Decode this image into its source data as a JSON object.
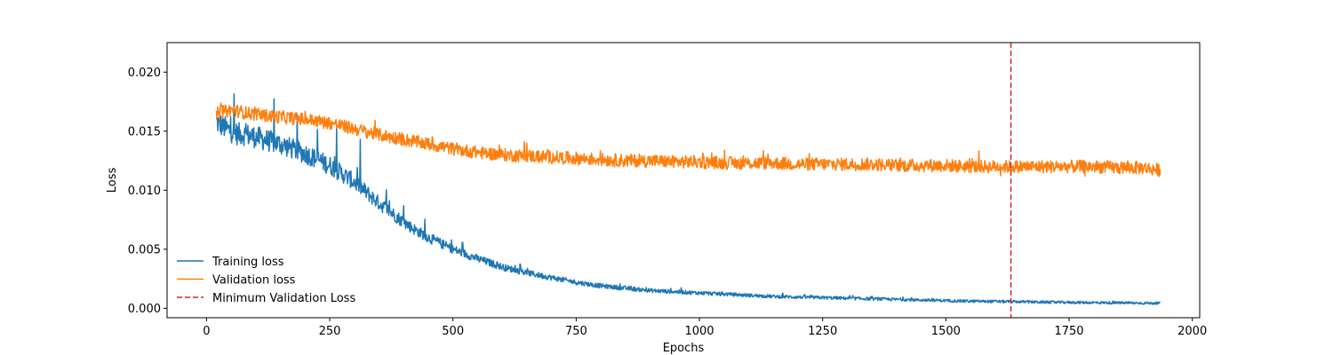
{
  "chart_data": {
    "type": "line",
    "title": "",
    "xlabel": "Epochs",
    "ylabel": "Loss",
    "xlim": [
      -80,
      2015
    ],
    "ylim": [
      -0.0008,
      0.0225
    ],
    "x_ticks": [
      0,
      250,
      500,
      750,
      1000,
      1250,
      1500,
      1750,
      2000
    ],
    "x_tick_labels": [
      "0",
      "250",
      "500",
      "750",
      "1000",
      "1250",
      "1500",
      "1750",
      "2000"
    ],
    "y_ticks": [
      0.0,
      0.005,
      0.01,
      0.015,
      0.02
    ],
    "y_tick_labels": [
      "0.000",
      "0.005",
      "0.010",
      "0.015",
      "0.020"
    ],
    "grid": false,
    "legend_position": "lower-left",
    "series": [
      {
        "name": "Training loss",
        "color": "#1f77b4",
        "style": "solid",
        "x": [
          20,
          40,
          60,
          80,
          100,
          125,
          150,
          175,
          200,
          225,
          250,
          275,
          300,
          325,
          350,
          375,
          400,
          425,
          450,
          475,
          500,
          550,
          600,
          650,
          700,
          750,
          800,
          850,
          900,
          950,
          1000,
          1050,
          1100,
          1150,
          1200,
          1250,
          1300,
          1350,
          1400,
          1450,
          1500,
          1550,
          1600,
          1650,
          1700,
          1750,
          1800,
          1850,
          1900,
          1935
        ],
        "y": [
          0.0158,
          0.0152,
          0.0148,
          0.0147,
          0.0145,
          0.0142,
          0.0139,
          0.0135,
          0.0131,
          0.0126,
          0.0121,
          0.0114,
          0.0107,
          0.0098,
          0.0089,
          0.0081,
          0.0073,
          0.0066,
          0.006,
          0.0055,
          0.005,
          0.0042,
          0.0035,
          0.003,
          0.0026,
          0.0022,
          0.0019,
          0.0017,
          0.0015,
          0.0014,
          0.0013,
          0.0012,
          0.0011,
          0.001,
          0.00095,
          0.0009,
          0.00085,
          0.0008,
          0.00075,
          0.0007,
          0.00065,
          0.0006,
          0.00058,
          0.00055,
          0.00052,
          0.0005,
          0.00048,
          0.00046,
          0.00044,
          0.00043
        ]
      },
      {
        "name": "Validation loss",
        "color": "#ff7f0e",
        "style": "solid",
        "x": [
          20,
          50,
          100,
          150,
          200,
          250,
          300,
          350,
          400,
          450,
          500,
          550,
          600,
          650,
          700,
          750,
          800,
          850,
          900,
          950,
          1000,
          1050,
          1100,
          1150,
          1200,
          1250,
          1300,
          1350,
          1400,
          1450,
          1500,
          1550,
          1600,
          1650,
          1700,
          1750,
          1800,
          1850,
          1900,
          1935
        ],
        "y": [
          0.0165,
          0.0168,
          0.0164,
          0.0162,
          0.016,
          0.0157,
          0.0152,
          0.0147,
          0.0143,
          0.0139,
          0.0135,
          0.0132,
          0.013,
          0.0129,
          0.0128,
          0.0127,
          0.0126,
          0.0125,
          0.0125,
          0.0124,
          0.0124,
          0.0123,
          0.0123,
          0.0123,
          0.0122,
          0.0122,
          0.0122,
          0.0122,
          0.0121,
          0.0121,
          0.0121,
          0.012,
          0.012,
          0.012,
          0.012,
          0.012,
          0.012,
          0.0119,
          0.0119,
          0.0117
        ]
      }
    ],
    "vline": {
      "name": "Minimum Validation Loss",
      "x": 1632,
      "color": "#d62728",
      "style": "dashed"
    }
  }
}
